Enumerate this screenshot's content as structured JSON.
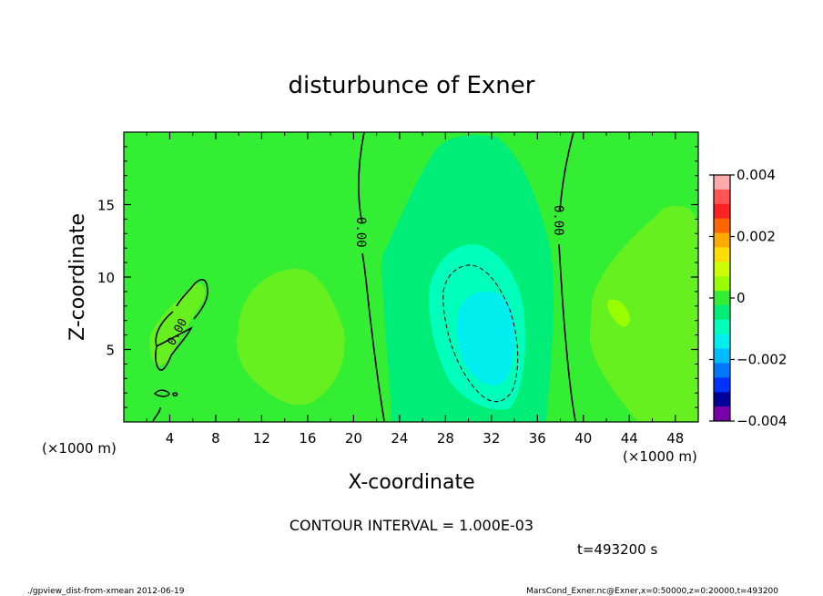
{
  "chart_data": {
    "type": "heatmap",
    "title": "disturbunce of Exner",
    "xlabel": "X-coordinate",
    "ylabel": "Z-coordinate",
    "x_unit": "(×1000 m)",
    "y_unit": "(×1000 m)",
    "xlim": [
      0,
      50
    ],
    "ylim": [
      0,
      20
    ],
    "x_ticks": [
      4,
      8,
      12,
      16,
      20,
      24,
      28,
      32,
      36,
      40,
      44,
      48
    ],
    "y_ticks": [
      5,
      10,
      15
    ],
    "colorbar": {
      "range": [
        -0.004,
        0.004
      ],
      "tick_labels": [
        "0.004",
        "0.002",
        "0",
        "−0.002",
        "−0.004"
      ],
      "tick_values": [
        0.004,
        0.002,
        0,
        -0.002,
        -0.004
      ],
      "levels": [
        0.0035,
        0.003,
        0.0025,
        0.002,
        0.0015,
        0.001,
        0.0005,
        0,
        -0.0005,
        -0.001,
        -0.0015,
        -0.002,
        -0.0025,
        -0.003,
        -0.0035,
        -0.004
      ],
      "colors": [
        "#ffaaaa",
        "#ff5555",
        "#ff2222",
        "#ff6600",
        "#ffaa00",
        "#ffdd00",
        "#ccff00",
        "#99ff00",
        "#33ee33",
        "#00ee77",
        "#00ffbb",
        "#00eeee",
        "#00bbff",
        "#0077ff",
        "#0033ff",
        "#000099",
        "#7700aa"
      ]
    },
    "contour_labels": [
      "0.00",
      "0.00",
      "0.00"
    ],
    "contour_interval": "CONTOUR INTERVAL = 1.000E-03",
    "time_label": "t=493200 s"
  },
  "footer": {
    "left": "./gpview_dist-from-xmean  2012-06-19",
    "right": "MarsCond_Exner.nc@Exner,x=0:50000,z=0:20000,t=493200"
  },
  "colors": {
    "background_field": "#33ee33",
    "positive_light": "#66f020",
    "positive": "#99ff00",
    "negative_light": "#00ee77",
    "negative": "#00ffbb",
    "negative_strong": "#00eeee"
  }
}
